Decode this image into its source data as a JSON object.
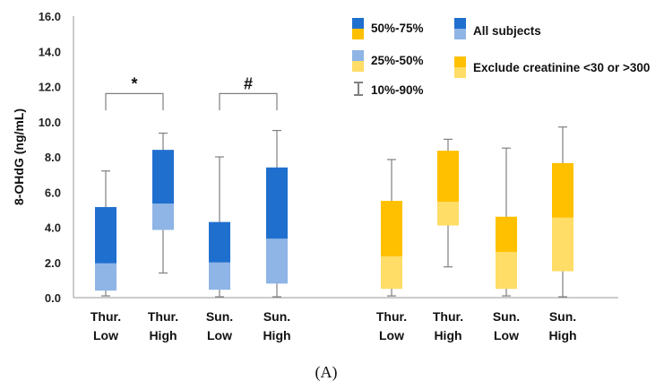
{
  "chart_data": {
    "type": "box",
    "ylabel": "8-OHdG (ng/mL)",
    "ylim": [
      0,
      16
    ],
    "yticks": [
      "0.0",
      "2.0",
      "4.0",
      "6.0",
      "8.0",
      "10.0",
      "12.0",
      "14.0",
      "16.0"
    ],
    "panel_label": "(A)",
    "legend": {
      "q3_label": "50%-75%",
      "q2_label": "25%-50%",
      "whisker_label": "10%-90%",
      "series_all": "All subjects",
      "series_excl": "Exclude creatinine <30 or >300"
    },
    "colors": {
      "all_upper": "#1f6fcf",
      "all_lower": "#8fb4e6",
      "excl_upper": "#ffc000",
      "excl_lower": "#ffdd66",
      "whisker": "#808080",
      "bracket": "#808080"
    },
    "series": [
      {
        "name": "All subjects",
        "boxes": [
          {
            "line1": "Thur.",
            "line2": "Low",
            "p10": 0.1,
            "q1": 0.4,
            "median": 1.95,
            "q3": 5.15,
            "p90": 7.2
          },
          {
            "line1": "Thur.",
            "line2": "High",
            "p10": 1.4,
            "q1": 3.85,
            "median": 5.35,
            "q3": 8.4,
            "p90": 9.35
          },
          {
            "line1": "Sun.",
            "line2": "Low",
            "p10": 0.05,
            "q1": 0.45,
            "median": 2.0,
            "q3": 4.3,
            "p90": 8.0
          },
          {
            "line1": "Sun.",
            "line2": "High",
            "p10": 0.05,
            "q1": 0.8,
            "median": 3.35,
            "q3": 7.4,
            "p90": 9.5
          }
        ]
      },
      {
        "name": "Exclude creatinine <30 or >300",
        "boxes": [
          {
            "line1": "Thur.",
            "line2": "Low",
            "p10": 0.1,
            "q1": 0.5,
            "median": 2.35,
            "q3": 5.5,
            "p90": 7.85
          },
          {
            "line1": "Thur.",
            "line2": "High",
            "p10": 1.75,
            "q1": 4.1,
            "median": 5.45,
            "q3": 8.35,
            "p90": 9.0
          },
          {
            "line1": "Sun.",
            "line2": "Low",
            "p10": 0.1,
            "q1": 0.5,
            "median": 2.6,
            "q3": 4.6,
            "p90": 8.5
          },
          {
            "line1": "Sun.",
            "line2": "High",
            "p10": 0.05,
            "q1": 1.5,
            "median": 4.55,
            "q3": 7.65,
            "p90": 9.7
          }
        ]
      }
    ],
    "annotations": [
      {
        "text": "*",
        "from": 0,
        "to": 1,
        "y": 11.6
      },
      {
        "text": "#",
        "from": 2,
        "to": 3,
        "y": 11.6
      }
    ]
  }
}
